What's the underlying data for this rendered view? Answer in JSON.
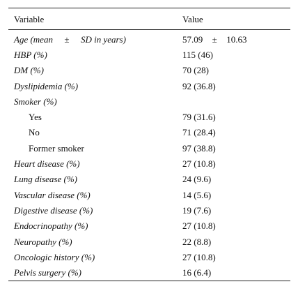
{
  "table": {
    "header": {
      "variable": "Variable",
      "value": "Value"
    },
    "age_row": {
      "label_prefix": "Age (mean",
      "label_pm": "±",
      "label_suffix": "SD in years)",
      "mean": "57.09",
      "pm": "±",
      "sd": "10.63"
    },
    "rows": [
      {
        "label": "HBP (%)",
        "value": "115 (46)"
      },
      {
        "label": "DM (%)",
        "value": "70 (28)"
      },
      {
        "label": "Dyslipidemia (%)",
        "value": "92 (36.8)"
      },
      {
        "label": "Smoker (%)",
        "value": ""
      },
      {
        "label": "Yes",
        "value": "79 (31.6)"
      },
      {
        "label": "No",
        "value": "71 (28.4)"
      },
      {
        "label": "Former smoker",
        "value": "97 (38.8)"
      },
      {
        "label": "Heart disease (%)",
        "value": "27 (10.8)"
      },
      {
        "label": "Lung disease (%)",
        "value": "24 (9.6)"
      },
      {
        "label": "Vascular disease (%)",
        "value": "14 (5.6)"
      },
      {
        "label": "Digestive disease (%)",
        "value": "19 (7.6)"
      },
      {
        "label": "Endocrinopathy (%)",
        "value": "27 (10.8)"
      },
      {
        "label": "Neuropathy (%)",
        "value": "22 (8.8)"
      },
      {
        "label": "Oncologic history (%)",
        "value": "27 (10.8)"
      },
      {
        "label": "Pelvis surgery (%)",
        "value": "16 (6.4)"
      }
    ]
  }
}
